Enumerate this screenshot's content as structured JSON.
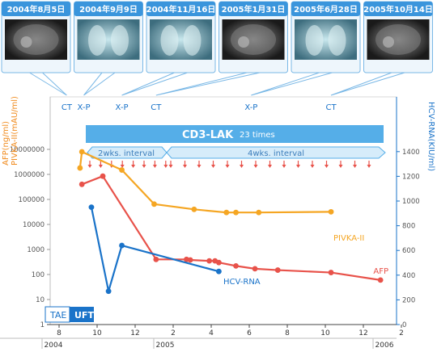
{
  "thumbnails": [
    {
      "date": "2004年8月5日",
      "kind": "ct"
    },
    {
      "date": "2004年9月9日",
      "kind": "xray"
    },
    {
      "date": "2004年11月16日",
      "kind": "xray"
    },
    {
      "date": "2005年1月31日",
      "kind": "ct"
    },
    {
      "date": "2005年6月28日",
      "kind": "xray"
    },
    {
      "date": "2005年10月14日",
      "kind": "ct"
    }
  ],
  "exam_markers": [
    {
      "label": "CT",
      "month": 8.4
    },
    {
      "label": "X-P",
      "month": 9.3
    },
    {
      "label": "X-P",
      "month": 11.3
    },
    {
      "label": "CT",
      "month": 13.1
    },
    {
      "label": "X-P",
      "month": 18.1
    },
    {
      "label": "CT",
      "month": 22.3
    }
  ],
  "treatment": {
    "label": "CD3-LAK",
    "times": "23 times",
    "interval_1": "2wks. interval",
    "interval_2": "4wks. interval",
    "tae": "TAE",
    "uft": "UFT"
  },
  "chart_data": {
    "type": "line",
    "ylabel_left": "AFP(ng/ml)\nPIVKA-II(mAU/ml)",
    "ylabel_right": "HCV-RNA(KIU/ml)",
    "y_left": {
      "scale": "log",
      "range": [
        1,
        100000000
      ],
      "ticks": [
        "1",
        "10",
        "100",
        "1000",
        "10000",
        "100000",
        "1000000",
        "10000000"
      ]
    },
    "y_right": {
      "scale": "linear",
      "range": [
        0,
        1600
      ],
      "ticks": [
        "0",
        "200",
        "400",
        "600",
        "800",
        "1000",
        "1200",
        "1400"
      ]
    },
    "x": {
      "unit": "month",
      "start_label_year": "2004",
      "ticks": [
        "8",
        "10",
        "12",
        "2",
        "4",
        "6",
        "8",
        "10",
        "12",
        "2"
      ],
      "year_labels": [
        "2004",
        "2005",
        "2006"
      ]
    },
    "series": [
      {
        "name": "PIVKA-II",
        "color": "#f5a623",
        "axis": "left",
        "x": [
          9.1,
          9.2,
          11.3,
          13.0,
          15.1,
          16.8,
          17.3,
          18.5,
          22.3
        ],
        "y": [
          1800000,
          8000000,
          1500000,
          65000,
          40000,
          30000,
          30000,
          30000,
          32000
        ]
      },
      {
        "name": "AFP",
        "color": "#e8524a",
        "axis": "left",
        "x": [
          9.2,
          10.3,
          13.1,
          14.7,
          14.9,
          15.9,
          16.2,
          16.4,
          17.3,
          18.3,
          19.5,
          22.3,
          24.9
        ],
        "y": [
          400000,
          850000,
          400,
          400,
          380,
          350,
          350,
          300,
          220,
          170,
          150,
          120,
          60
        ]
      },
      {
        "name": "HCV-RNA",
        "color": "#1a73c9",
        "axis": "right",
        "x": [
          9.7,
          10.6,
          11.3,
          16.4
        ],
        "y": [
          950,
          270,
          640,
          430
        ]
      }
    ]
  },
  "colors": {
    "orange": "#f5a623",
    "red": "#e8524a",
    "blue": "#1a73c9",
    "band": "#55aee8",
    "band_light": "#d6ecfa"
  }
}
